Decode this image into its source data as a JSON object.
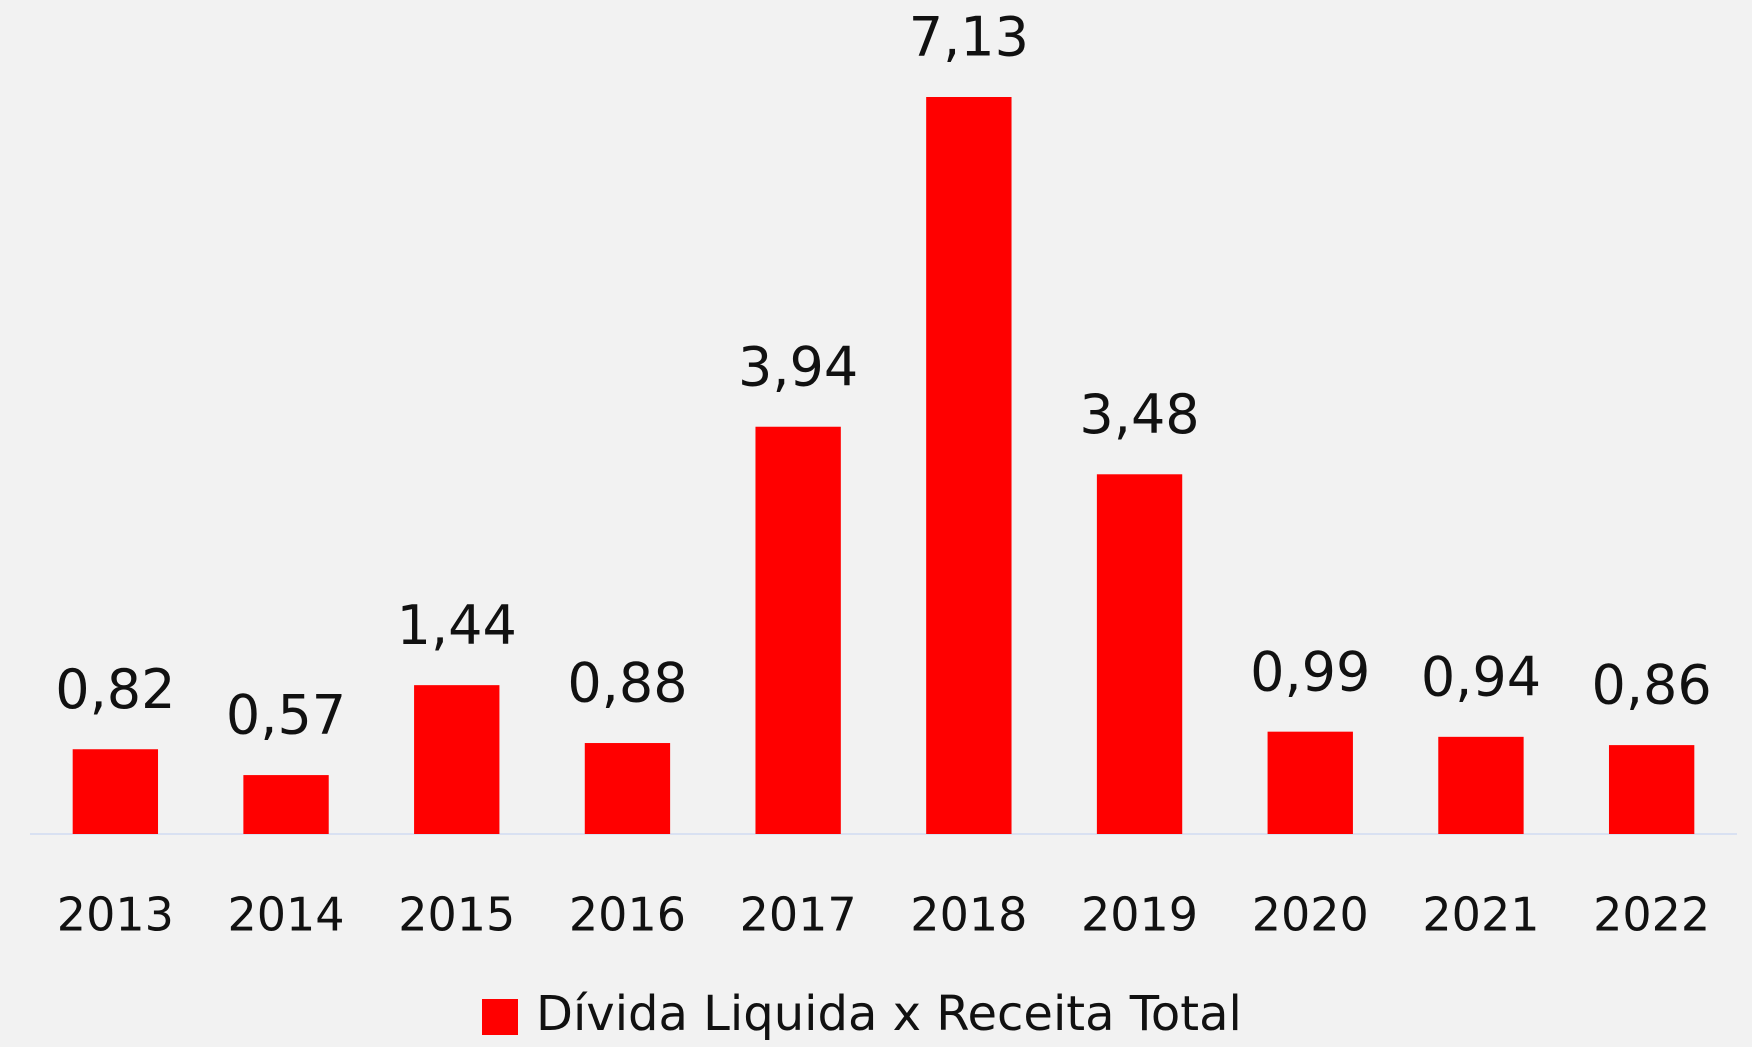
{
  "chart_data": {
    "type": "bar",
    "categories": [
      "2013",
      "2014",
      "2015",
      "2016",
      "2017",
      "2018",
      "2019",
      "2020",
      "2021",
      "2022"
    ],
    "series": [
      {
        "name": "Dívida Liquida x Receita Total",
        "color": "#ff0000",
        "values": [
          0.82,
          0.57,
          1.44,
          0.88,
          3.94,
          7.13,
          3.48,
          0.99,
          0.94,
          0.86
        ],
        "value_labels": [
          "0,82",
          "0,57",
          "1,44",
          "0,88",
          "3,94",
          "7,13",
          "3,48",
          "0,99",
          "0,94",
          "0,86"
        ]
      }
    ],
    "legend": "bottom"
  }
}
